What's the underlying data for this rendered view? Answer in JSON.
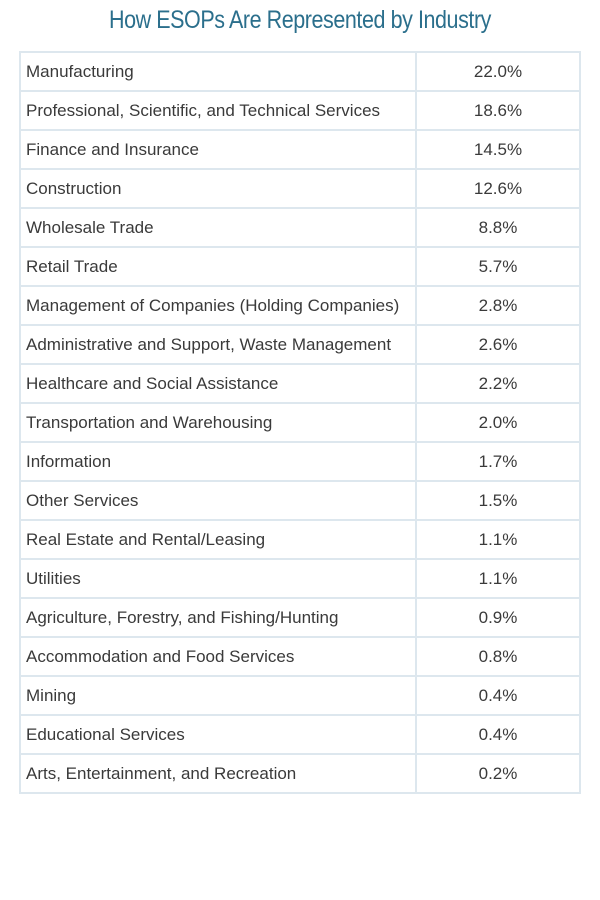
{
  "colors": {
    "title": "#2b6f8c",
    "border": "#dde7ee",
    "text": "#3a3a3a"
  },
  "chart_data": {
    "type": "table",
    "title": "How ESOPs Are Represented by Industry",
    "rows": [
      {
        "industry": "Manufacturing",
        "share": "22.0%"
      },
      {
        "industry": "Professional, Scientific, and Technical Services",
        "share": "18.6%"
      },
      {
        "industry": "Finance and Insurance",
        "share": "14.5%"
      },
      {
        "industry": "Construction",
        "share": "12.6%"
      },
      {
        "industry": "Wholesale Trade",
        "share": "8.8%"
      },
      {
        "industry": "Retail Trade",
        "share": "5.7%"
      },
      {
        "industry": "Management of Companies (Holding Companies)",
        "share": "2.8%"
      },
      {
        "industry": "Administrative and Support, Waste Management",
        "share": "2.6%"
      },
      {
        "industry": "Healthcare and Social Assistance",
        "share": "2.2%"
      },
      {
        "industry": "Transportation and Warehousing",
        "share": "2.0%"
      },
      {
        "industry": "Information",
        "share": "1.7%"
      },
      {
        "industry": "Other Services",
        "share": "1.5%"
      },
      {
        "industry": "Real Estate and Rental/Leasing",
        "share": "1.1%"
      },
      {
        "industry": "Utilities",
        "share": "1.1%"
      },
      {
        "industry": "Agriculture, Forestry, and Fishing/Hunting",
        "share": "0.9%"
      },
      {
        "industry": "Accommodation and Food Services",
        "share": "0.8%"
      },
      {
        "industry": "Mining",
        "share": "0.4%"
      },
      {
        "industry": "Educational Services",
        "share": "0.4%"
      },
      {
        "industry": "Arts, Entertainment, and Recreation",
        "share": "0.2%"
      }
    ]
  }
}
